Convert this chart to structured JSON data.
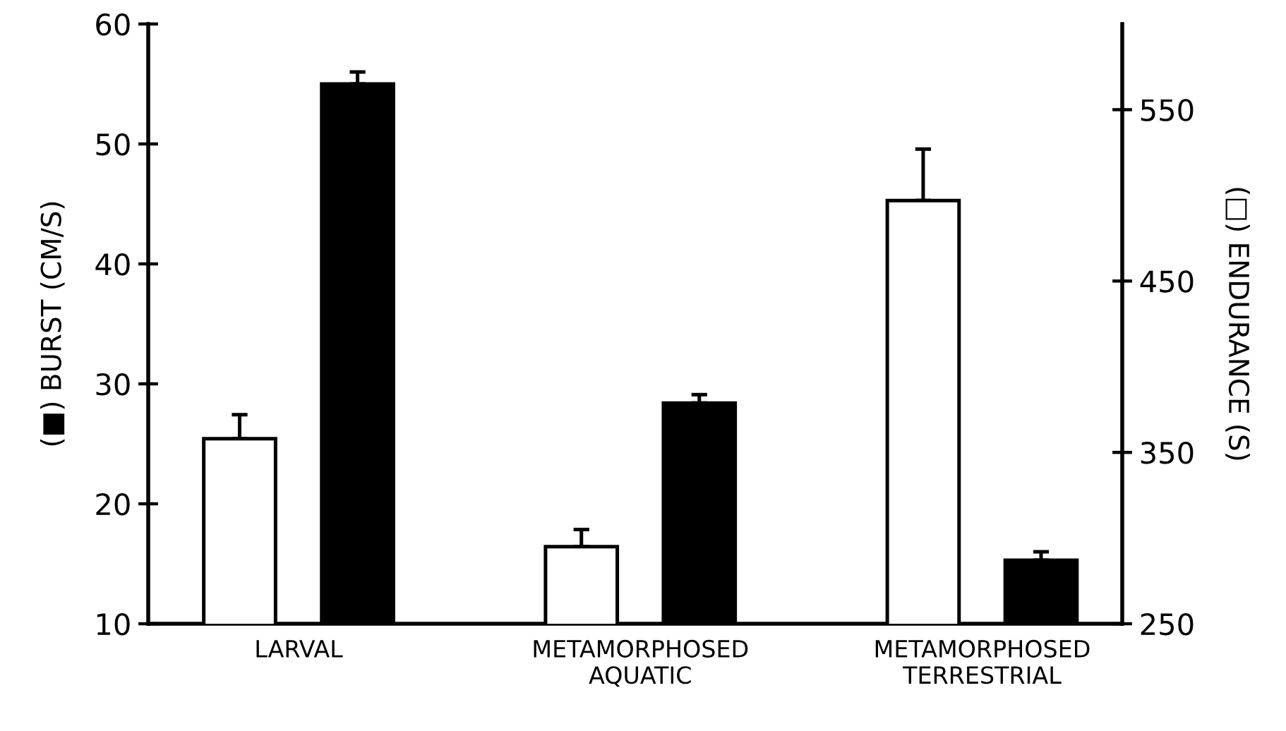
{
  "chart_data": {
    "type": "bar",
    "ylabel": "(■) BURST (CM/S)",
    "y2label": "(□) ENDURANCE (S)",
    "categories": [
      "LARVAL",
      "METAMORPHOSED\nAQUATIC",
      "METAMORPHOSED\nTERRESTRIAL"
    ],
    "series": [
      {
        "color": "#ffffff",
        "axis": "y2",
        "values": [
          358,
          295,
          497
        ],
        "errors": [
          [
            358,
            372
          ],
          [
            295,
            305
          ],
          [
            497,
            527
          ]
        ]
      },
      {
        "color": "#000000",
        "axis": "y",
        "values": [
          55.0,
          28.4,
          15.3
        ],
        "errors": [
          [
            55.0,
            56.0
          ],
          [
            28.4,
            29.1
          ],
          [
            15.3,
            16.0
          ]
        ]
      }
    ],
    "ylim": [
      10,
      60
    ],
    "yticks": [
      10,
      20,
      30,
      40,
      50,
      60
    ],
    "y2lim": [
      250,
      600
    ],
    "y2ticks": [
      250,
      350,
      450,
      550
    ],
    "grid": false,
    "legend": false
  }
}
